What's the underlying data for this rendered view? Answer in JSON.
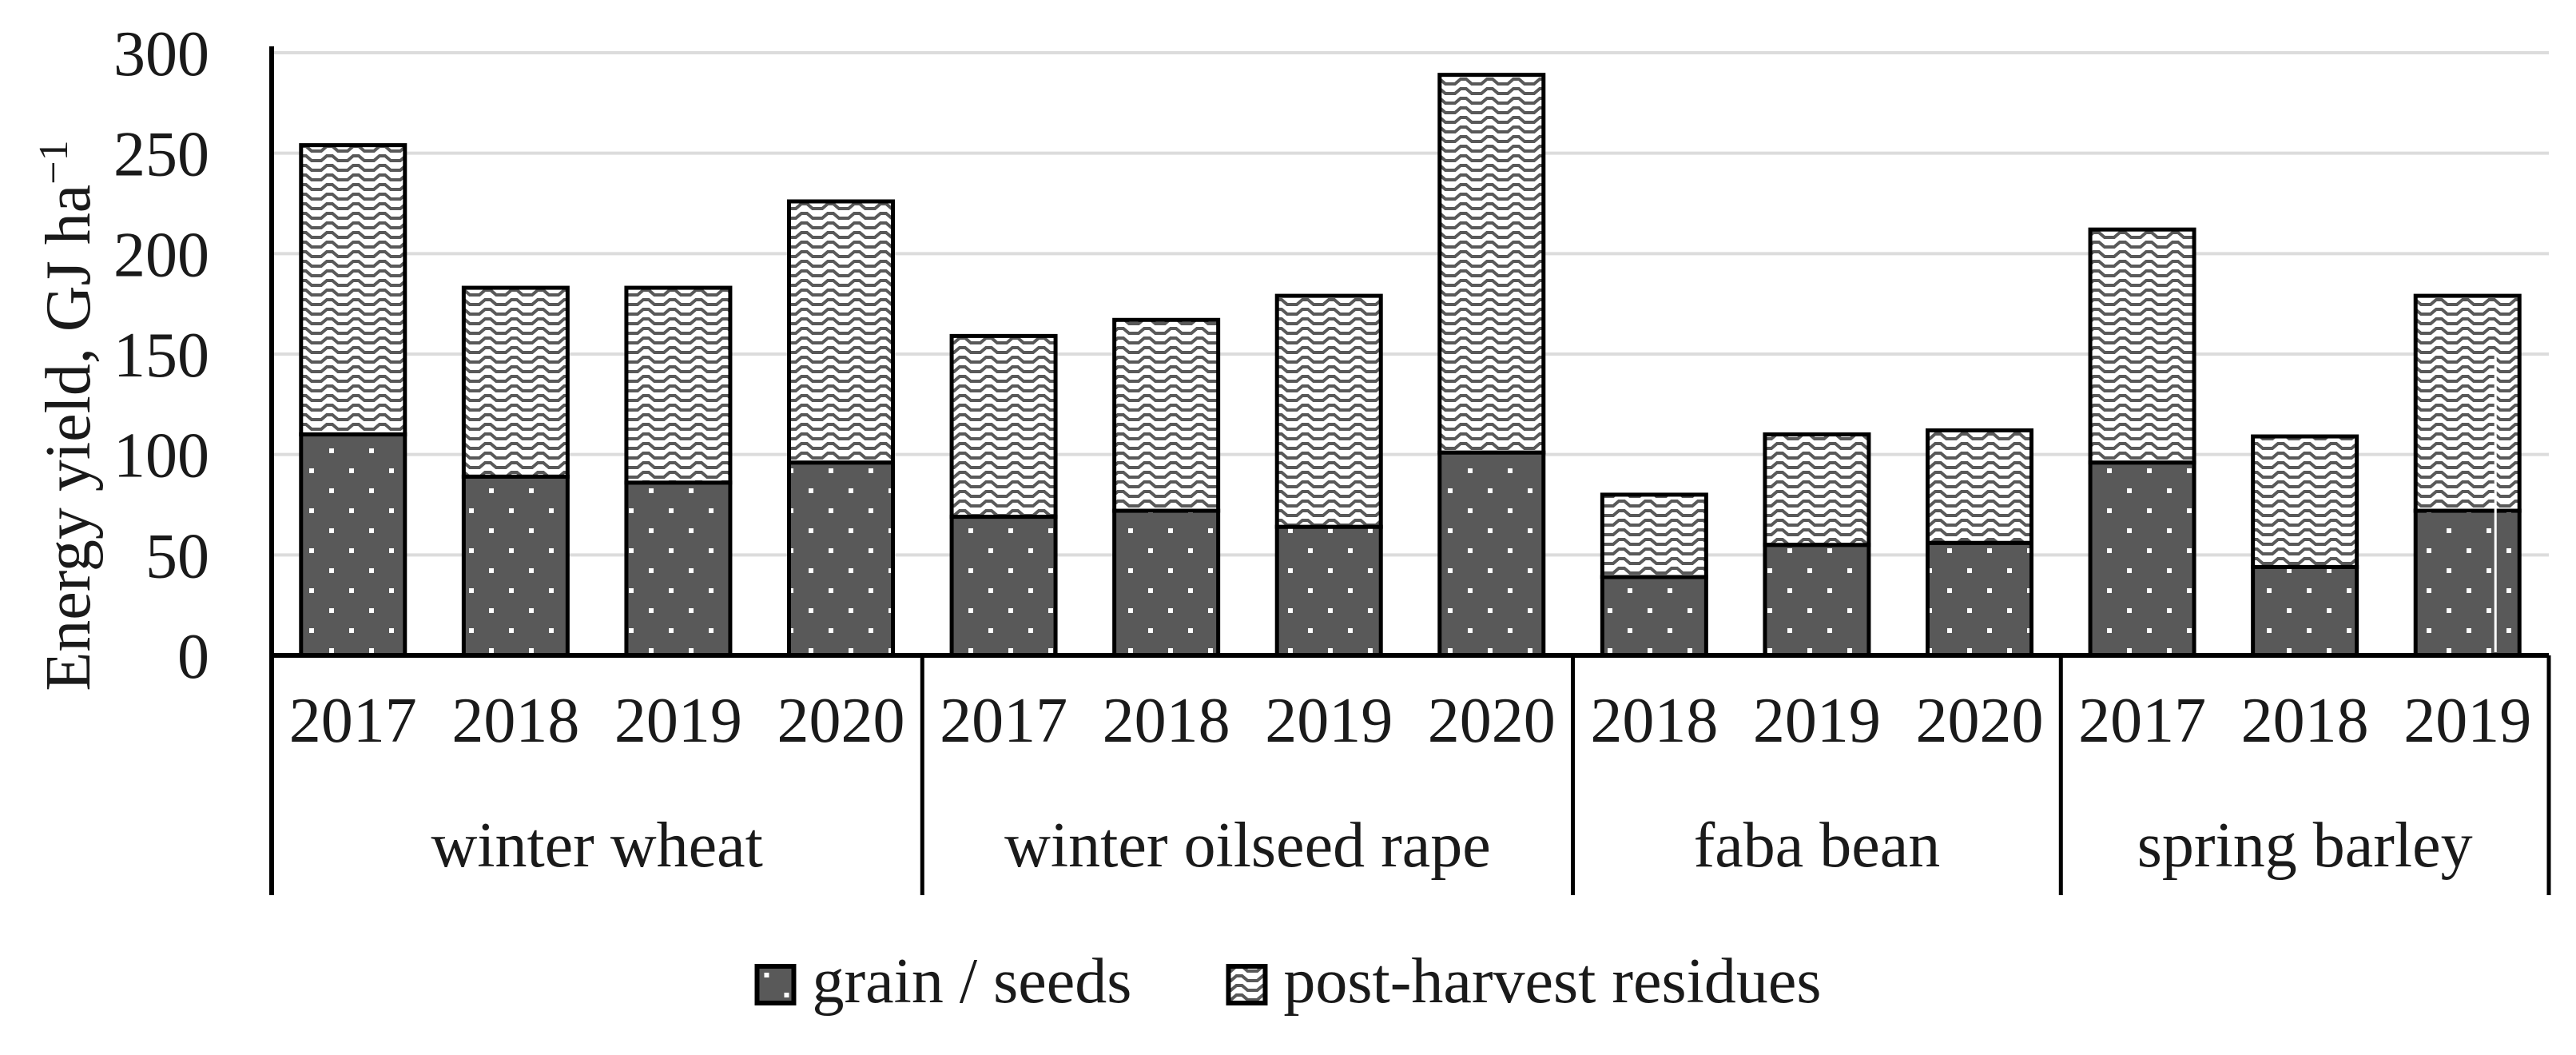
{
  "figure_type": "stacked bar chart figure",
  "colors": {
    "dark_fill": "#595959",
    "pattern_line": "#595959",
    "gridline": "#dcdcdc",
    "axis_line": "#000000",
    "bar_border": "#000000",
    "background": "#ffffff",
    "text": "#1a1a1a",
    "marker_line": "#ffffff"
  },
  "chart_data": {
    "type": "bar",
    "stacked": true,
    "title": "",
    "ylabel": "Energy yield, GJ ha⁻¹",
    "ylabel_base": "Energy yield, GJ ha",
    "ylabel_superscript": "−1",
    "ylim": [
      0,
      300
    ],
    "yticks": [
      0,
      50,
      100,
      150,
      200,
      250,
      300
    ],
    "grid": true,
    "legend_position": "bottom",
    "series_names": [
      "grain / seeds",
      "post-harvest residues"
    ],
    "series_patterns": [
      "white-dots-on-dark-gray",
      "gray-waves-on-white"
    ],
    "groups": [
      {
        "label": "winter wheat",
        "bars": [
          {
            "year": "2017",
            "grain_seeds": 110,
            "post_harvest_residues": 144,
            "total": 254
          },
          {
            "year": "2018",
            "grain_seeds": 89,
            "post_harvest_residues": 94,
            "total": 183
          },
          {
            "year": "2019",
            "grain_seeds": 86,
            "post_harvest_residues": 97,
            "total": 183
          },
          {
            "year": "2020",
            "grain_seeds": 96,
            "post_harvest_residues": 130,
            "total": 226
          }
        ]
      },
      {
        "label": "winter oilseed rape",
        "bars": [
          {
            "year": "2017",
            "grain_seeds": 69,
            "post_harvest_residues": 90,
            "total": 159
          },
          {
            "year": "2018",
            "grain_seeds": 72,
            "post_harvest_residues": 95,
            "total": 167
          },
          {
            "year": "2019",
            "grain_seeds": 64,
            "post_harvest_residues": 115,
            "total": 179
          },
          {
            "year": "2020",
            "grain_seeds": 101,
            "post_harvest_residues": 188,
            "total": 289
          }
        ]
      },
      {
        "label": "faba bean",
        "bars": [
          {
            "year": "2018",
            "grain_seeds": 39,
            "post_harvest_residues": 41,
            "total": 80
          },
          {
            "year": "2019",
            "grain_seeds": 55,
            "post_harvest_residues": 55,
            "total": 110
          },
          {
            "year": "2020",
            "grain_seeds": 56,
            "post_harvest_residues": 56,
            "total": 112
          }
        ]
      },
      {
        "label": "spring barley",
        "bars": [
          {
            "year": "2017",
            "grain_seeds": 96,
            "post_harvest_residues": 116,
            "total": 212
          },
          {
            "year": "2018",
            "grain_seeds": 44,
            "post_harvest_residues": 65,
            "total": 109
          },
          {
            "year": "2019",
            "grain_seeds": 72,
            "post_harvest_residues": 107,
            "total": 179,
            "white_marker_line": true
          }
        ]
      }
    ]
  },
  "legend": {
    "items": [
      {
        "label": "grain / seeds"
      },
      {
        "label": "post-harvest residues"
      }
    ]
  }
}
